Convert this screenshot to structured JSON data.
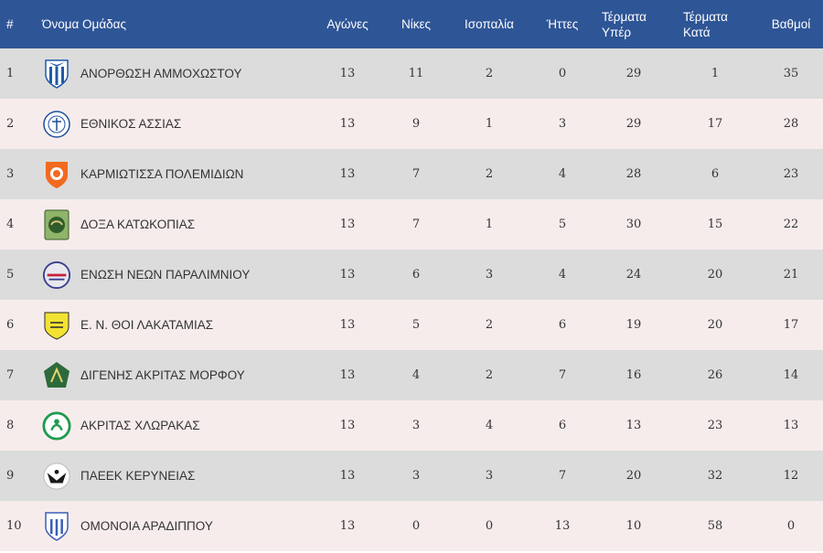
{
  "header": {
    "rank": "#",
    "team": "Όνομα Ομάδας",
    "games": "Αγώνες",
    "wins": "Νίκες",
    "draws": "Ισοπαλία",
    "losses": "Ήττες",
    "goals_for_1": "Τέρματα",
    "goals_for_2": "Υπέρ",
    "goals_against_1": "Τέρματα",
    "goals_against_2": "Κατά",
    "points": "Βαθμοί"
  },
  "rows": [
    {
      "rank": "1",
      "team": "ΑΝΟΡΘΩΣΗ ΑΜΜΟΧΩΣΤΟΥ",
      "logo": "anorthosis-crest-icon",
      "games": "13",
      "wins": "11",
      "draws": "2",
      "losses": "0",
      "gf": "29",
      "ga": "1",
      "pts": "35"
    },
    {
      "rank": "2",
      "team": "ΕΘΝΙΚΟΣ ΑΣΣΙΑΣ",
      "logo": "ethnikos-crest-icon",
      "games": "13",
      "wins": "9",
      "draws": "1",
      "losses": "3",
      "gf": "29",
      "ga": "17",
      "pts": "28"
    },
    {
      "rank": "3",
      "team": "ΚΑΡΜΙΩΤΙΣΣΑ ΠΟΛΕΜΙΔΙΩΝ",
      "logo": "karmiotissa-crest-icon",
      "games": "13",
      "wins": "7",
      "draws": "2",
      "losses": "4",
      "gf": "28",
      "ga": "6",
      "pts": "23"
    },
    {
      "rank": "4",
      "team": "ΔΟΞΑ ΚΑΤΩΚΟΠΙΑΣ",
      "logo": "doxa-crest-icon",
      "games": "13",
      "wins": "7",
      "draws": "1",
      "losses": "5",
      "gf": "30",
      "ga": "15",
      "pts": "22"
    },
    {
      "rank": "5",
      "team": "ΕΝΩΣΗ ΝΕΩΝ ΠΑΡΑΛΙΜΝΙΟΥ",
      "logo": "enp-crest-icon",
      "games": "13",
      "wins": "6",
      "draws": "3",
      "losses": "4",
      "gf": "24",
      "ga": "20",
      "pts": "21"
    },
    {
      "rank": "6",
      "team": "Ε. Ν. ΘΟΙ ΛΑΚΑΤΑΜΙΑΣ",
      "logo": "thoi-crest-icon",
      "games": "13",
      "wins": "5",
      "draws": "2",
      "losses": "6",
      "gf": "19",
      "ga": "20",
      "pts": "17"
    },
    {
      "rank": "7",
      "team": "ΔΙΓΕΝΗΣ ΑΚΡΙΤΑΣ ΜΟΡΦΟΥ",
      "logo": "digenis-crest-icon",
      "games": "13",
      "wins": "4",
      "draws": "2",
      "losses": "7",
      "gf": "16",
      "ga": "26",
      "pts": "14"
    },
    {
      "rank": "8",
      "team": "ΑΚΡΙΤΑΣ ΧΛΩΡΑΚΑΣ",
      "logo": "akritas-crest-icon",
      "games": "13",
      "wins": "3",
      "draws": "4",
      "losses": "6",
      "gf": "13",
      "ga": "23",
      "pts": "13"
    },
    {
      "rank": "9",
      "team": "ΠΑΕΕΚ ΚΕΡΥΝΕΙΑΣ",
      "logo": "paeek-crest-icon",
      "games": "13",
      "wins": "3",
      "draws": "3",
      "losses": "7",
      "gf": "20",
      "ga": "32",
      "pts": "12"
    },
    {
      "rank": "10",
      "team": "ΟΜΟΝΟΙΑ ΑΡΑΔΙΠΠΟΥ",
      "logo": "omonoia-crest-icon",
      "games": "13",
      "wins": "0",
      "draws": "0",
      "losses": "13",
      "gf": "10",
      "ga": "58",
      "pts": "0"
    }
  ],
  "colors": {
    "header_bg": "#2e5596",
    "row_odd": "#dcdcdc",
    "row_even": "#f7ecec"
  }
}
